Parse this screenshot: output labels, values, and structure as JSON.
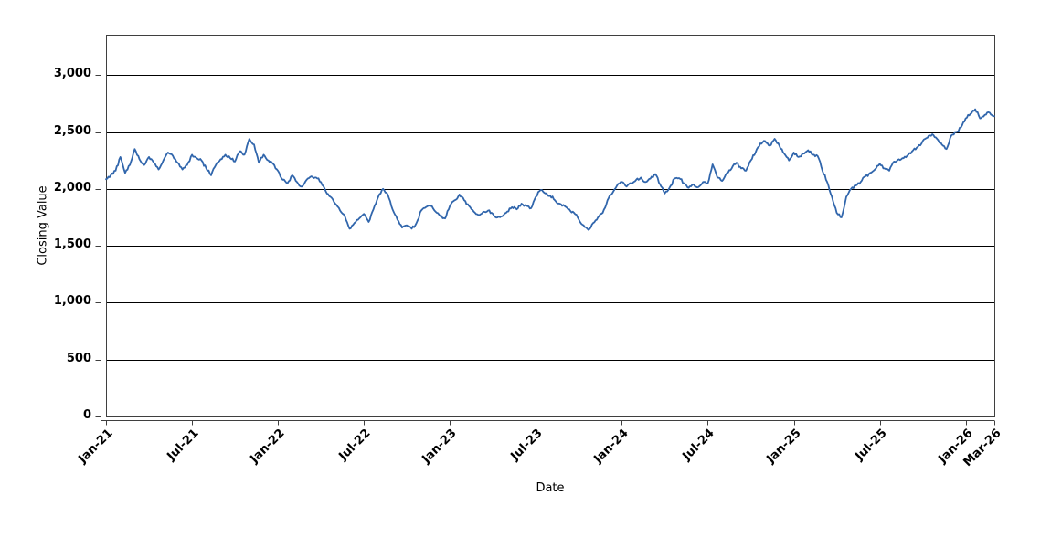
{
  "window": {
    "background": "#ffffff"
  },
  "chart_data": {
    "type": "line",
    "title": "",
    "xlabel": "Date",
    "ylabel": "Closing Value",
    "legend": "none",
    "grid": "horizontal-only",
    "x_unit": "months since Jan-2021",
    "x_range": [
      0,
      62
    ],
    "y_range": [
      0,
      3355
    ],
    "x_ticks": [
      {
        "m": 0,
        "label": "Jan-21"
      },
      {
        "m": 6,
        "label": "Jul-21"
      },
      {
        "m": 12,
        "label": "Jan-22"
      },
      {
        "m": 18,
        "label": "Jul-22"
      },
      {
        "m": 24,
        "label": "Jan-23"
      },
      {
        "m": 30,
        "label": "Jul-23"
      },
      {
        "m": 36,
        "label": "Jan-24"
      },
      {
        "m": 42,
        "label": "Jul-24"
      },
      {
        "m": 48,
        "label": "Jan-25"
      },
      {
        "m": 54,
        "label": "Jul-25"
      },
      {
        "m": 60,
        "label": "Jan-26"
      },
      {
        "m": 62,
        "label": "Mar-26"
      }
    ],
    "y_ticks": [
      {
        "v": 0,
        "label": "0"
      },
      {
        "v": 500,
        "label": "500"
      },
      {
        "v": 1000,
        "label": "1,000"
      },
      {
        "v": 1500,
        "label": "1,500"
      },
      {
        "v": 2000,
        "label": "2,000"
      },
      {
        "v": 2500,
        "label": "2,500"
      },
      {
        "v": 3000,
        "label": "3,000"
      }
    ],
    "colors": {
      "line": "#3166ac",
      "grid": "#000000",
      "axis": "#3f3f3f",
      "border": "#3f3f3f",
      "text": "#000000"
    },
    "style": {
      "line_width": 1.8,
      "noise_amplitude": 14,
      "noise_seed": 9,
      "noise_subdivisions": 3
    },
    "series": [
      {
        "name": "Closing Value",
        "color": "#3166ac",
        "x_start": 0,
        "x_step_months": 0.333333,
        "values": [
          2085,
          2120,
          2160,
          2280,
          2140,
          2210,
          2350,
          2260,
          2210,
          2280,
          2230,
          2170,
          2250,
          2320,
          2290,
          2230,
          2170,
          2210,
          2300,
          2270,
          2250,
          2180,
          2120,
          2210,
          2260,
          2300,
          2270,
          2240,
          2330,
          2300,
          2440,
          2390,
          2230,
          2300,
          2250,
          2220,
          2160,
          2080,
          2050,
          2120,
          2060,
          2020,
          2080,
          2110,
          2100,
          2060,
          1980,
          1930,
          1870,
          1810,
          1760,
          1650,
          1700,
          1740,
          1780,
          1710,
          1820,
          1930,
          2000,
          1950,
          1820,
          1730,
          1660,
          1680,
          1650,
          1700,
          1810,
          1840,
          1850,
          1800,
          1760,
          1740,
          1850,
          1900,
          1950,
          1900,
          1850,
          1800,
          1770,
          1800,
          1810,
          1780,
          1750,
          1760,
          1800,
          1840,
          1820,
          1870,
          1850,
          1830,
          1930,
          1990,
          1960,
          1940,
          1900,
          1870,
          1850,
          1820,
          1790,
          1730,
          1680,
          1640,
          1700,
          1750,
          1790,
          1900,
          1960,
          2030,
          2060,
          2020,
          2050,
          2080,
          2100,
          2060,
          2090,
          2130,
          2040,
          1960,
          2010,
          2090,
          2095,
          2050,
          2010,
          2040,
          2015,
          2060,
          2050,
          2215,
          2100,
          2070,
          2140,
          2180,
          2230,
          2180,
          2160,
          2250,
          2320,
          2400,
          2420,
          2380,
          2440,
          2380,
          2310,
          2250,
          2320,
          2280,
          2310,
          2340,
          2300,
          2290,
          2160,
          2060,
          1930,
          1790,
          1750,
          1930,
          2000,
          2030,
          2060,
          2110,
          2140,
          2170,
          2220,
          2180,
          2160,
          2240,
          2260,
          2270,
          2300,
          2340,
          2370,
          2420,
          2450,
          2480,
          2440,
          2390,
          2350,
          2470,
          2500,
          2540,
          2620,
          2660,
          2700,
          2620,
          2650,
          2670,
          2640
        ]
      }
    ]
  }
}
